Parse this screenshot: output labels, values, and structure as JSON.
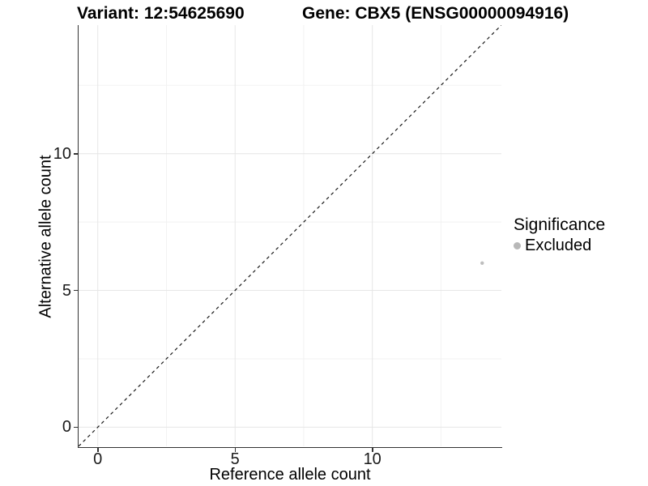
{
  "titles": {
    "variant": "Variant: 12:54625690",
    "gene": "Gene: CBX5 (ENSG00000094916)"
  },
  "axes": {
    "x_label": "Reference allele count",
    "y_label": "Alternative allele count"
  },
  "legend": {
    "title": "Significance",
    "items": [
      {
        "label": "Excluded",
        "color": "#b8b8b8"
      }
    ]
  },
  "colors": {
    "background": "#ffffff",
    "axis_line": "#333333",
    "grid_major": "#e6e6e6",
    "grid_minor": "#f2f2f2",
    "tick_label": "#1a1a1a",
    "identity_line": "#1a1a1a",
    "point": "#bebebe"
  },
  "chart_data": {
    "type": "scatter",
    "title": "Variant: 12:54625690    Gene: CBX5 (ENSG00000094916)",
    "xlabel": "Reference allele count",
    "ylabel": "Alternative allele count",
    "xlim": [
      -0.7,
      14.7
    ],
    "ylim": [
      -0.7,
      14.7
    ],
    "x_major_ticks": [
      0,
      5,
      10
    ],
    "x_minor_ticks": [
      2.5,
      7.5,
      12.5
    ],
    "y_major_ticks": [
      0,
      5,
      10
    ],
    "y_minor_ticks": [
      2.5,
      7.5,
      12.5
    ],
    "grid": true,
    "legend_position": "right",
    "identity_line": {
      "style": "dashed",
      "color": "#1a1a1a",
      "from": [
        -0.7,
        -0.7
      ],
      "to": [
        14.7,
        14.7
      ]
    },
    "series": [
      {
        "name": "Excluded",
        "color": "#bebebe",
        "points": [
          {
            "x": 14,
            "y": 6
          }
        ]
      }
    ]
  }
}
